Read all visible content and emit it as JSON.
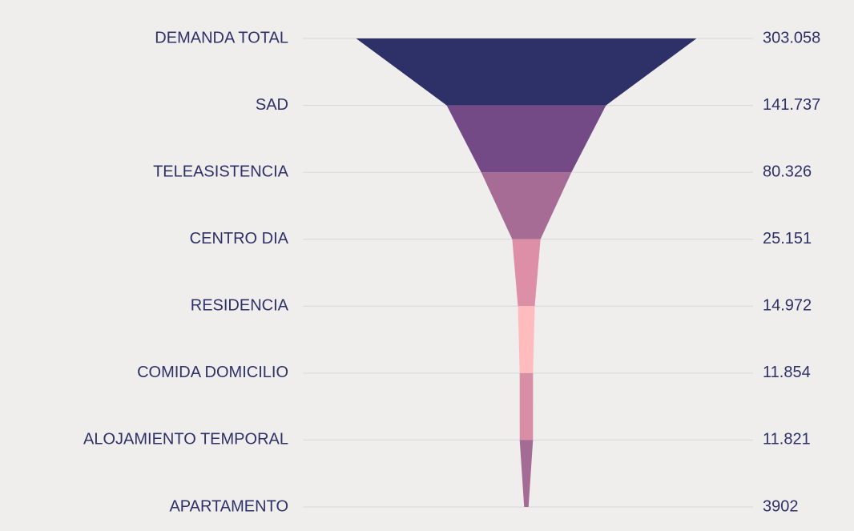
{
  "chart_data": {
    "type": "funnel",
    "categories": [
      "DEMANDA TOTAL",
      "SAD",
      "TELEASISTENCIA",
      "CENTRO DIA",
      "RESIDENCIA",
      "COMIDA DOMICILIO",
      "ALOJAMIENTO TEMPORAL",
      "APARTAMENTO"
    ],
    "values": [
      303058,
      141737,
      80326,
      25151,
      14972,
      11854,
      11821,
      3902
    ],
    "value_labels": [
      "303.058",
      "141.737",
      "80.326",
      "25.151",
      "14.972",
      "11.854",
      "11.821",
      "3902"
    ],
    "colors": [
      "#2e3168",
      "#734a85",
      "#a66c96",
      "#dc8fa7",
      "#ffbcbf",
      "#d88ea6",
      "#a46b94"
    ],
    "grid": true
  }
}
